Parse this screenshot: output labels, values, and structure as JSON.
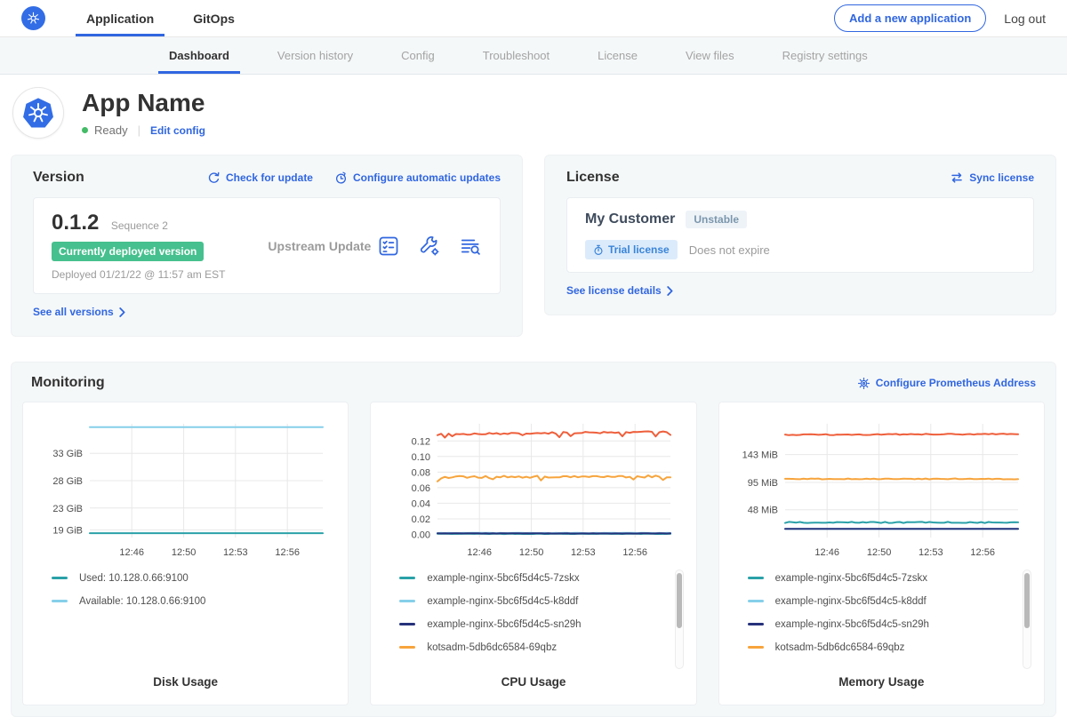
{
  "topnav": {
    "tabs": [
      {
        "label": "Application",
        "active": true
      },
      {
        "label": "GitOps",
        "active": false
      }
    ],
    "add_button": "Add a new application",
    "logout": "Log out"
  },
  "subnav": {
    "tabs": [
      {
        "label": "Dashboard",
        "active": true
      },
      {
        "label": "Version history",
        "active": false
      },
      {
        "label": "Config",
        "active": false
      },
      {
        "label": "Troubleshoot",
        "active": false
      },
      {
        "label": "License",
        "active": false
      },
      {
        "label": "View files",
        "active": false
      },
      {
        "label": "Registry settings",
        "active": false
      }
    ]
  },
  "app_header": {
    "title": "App Name",
    "status": "Ready",
    "edit_link": "Edit config"
  },
  "version_card": {
    "title": "Version",
    "check_update": "Check for update",
    "configure_updates": "Configure automatic updates",
    "version": "0.1.2",
    "sequence": "Sequence 2",
    "deployed_badge": "Currently deployed version",
    "deployed_at": "Deployed 01/21/22 @ 11:57 am EST",
    "source": "Upstream Update",
    "action_icons": [
      "preflight-checks-icon",
      "wrench-gear-icon",
      "deploy-logs-icon"
    ],
    "see_all": "See all versions"
  },
  "license_card": {
    "title": "License",
    "sync": "Sync license",
    "customer": "My Customer",
    "channel": "Unstable",
    "type_badge": "Trial license",
    "expiry": "Does not expire",
    "details": "See license details"
  },
  "monitoring": {
    "title": "Monitoring",
    "configure": "Configure Prometheus Address"
  },
  "colors": {
    "accent_blue": "#3066e0",
    "kubernetes_blue": "#326de6",
    "badge_green": "#46c08e",
    "status_green": "#44bb66",
    "teal_series": "#2aa1a8",
    "light_blue_series": "#85cfe9",
    "navy_series": "#26327b",
    "orange_series": "#f7a43c",
    "red_orange_series": "#ee5f3b",
    "panel_bg": "#f5f8f9"
  },
  "chart_data": [
    {
      "type": "line",
      "title": "Disk Usage",
      "x_ticks": [
        "12:46",
        "12:50",
        "12:53",
        "12:56"
      ],
      "y_ticks": [
        {
          "label": "33 GiB",
          "value": 33
        },
        {
          "label": "28 GiB",
          "value": 28
        },
        {
          "label": "23 GiB",
          "value": 23
        },
        {
          "label": "19 GiB",
          "value": 19
        }
      ],
      "ylim": [
        17.6,
        38.4
      ],
      "legend_scrollbar": false,
      "series": [
        {
          "name": "Used: 10.128.0.66:9100",
          "color": "#2aa1a8",
          "base": 18.4,
          "noise": 0,
          "shape": "flat"
        },
        {
          "name": "Available: 10.128.0.66:9100",
          "color": "#85cfe9",
          "base": 37.8,
          "noise": 0,
          "shape": "flat"
        }
      ]
    },
    {
      "type": "line",
      "title": "CPU Usage",
      "x_ticks": [
        "12:46",
        "12:50",
        "12:53",
        "12:56"
      ],
      "y_ticks": [
        {
          "label": "0.12",
          "value": 0.12
        },
        {
          "label": "0.10",
          "value": 0.1
        },
        {
          "label": "0.08",
          "value": 0.08
        },
        {
          "label": "0.06",
          "value": 0.06
        },
        {
          "label": "0.04",
          "value": 0.04
        },
        {
          "label": "0.02",
          "value": 0.02
        },
        {
          "label": "0.00",
          "value": 0
        }
      ],
      "ylim": [
        -0.004,
        0.142
      ],
      "legend_scrollbar": true,
      "series": [
        {
          "name": "example-nginx-5bc6f5d4c5-7zskx",
          "color": "#2aa1a8",
          "base": 0.0008,
          "noise": 0.0003
        },
        {
          "name": "example-nginx-5bc6f5d4c5-k8ddf",
          "color": "#85cfe9",
          "base": 0.0018,
          "noise": 0.0003
        },
        {
          "name": "example-nginx-5bc6f5d4c5-sn29h",
          "color": "#26327b",
          "base": 0.0013,
          "noise": 0.0002
        },
        {
          "name": "kotsadm-5db6dc6584-69qbz",
          "color": "#f7a43c",
          "base": 0.0735,
          "noise": 0.0015,
          "dip": 0.005,
          "trend": 0.001
        },
        {
          "name": "",
          "color": "#ee5f3b",
          "base": 0.1285,
          "noise": 0.0012,
          "dip": 0.0065,
          "trend": 0.0035,
          "in_legend": false
        }
      ]
    },
    {
      "type": "line",
      "title": "Memory Usage",
      "x_ticks": [
        "12:46",
        "12:50",
        "12:53",
        "12:56"
      ],
      "y_ticks": [
        {
          "label": "143 MiB",
          "value": 143
        },
        {
          "label": "95 MiB",
          "value": 95
        },
        {
          "label": "48 MiB",
          "value": 48
        }
      ],
      "ylim": [
        0,
        196
      ],
      "legend_scrollbar": true,
      "series": [
        {
          "name": "example-nginx-5bc6f5d4c5-7zskx",
          "color": "#2aa1a8",
          "base": 26,
          "noise": 1.0
        },
        {
          "name": "example-nginx-5bc6f5d4c5-k8ddf",
          "color": "#85cfe9",
          "base": 15,
          "noise": 0
        },
        {
          "name": "example-nginx-5bc6f5d4c5-sn29h",
          "color": "#26327b",
          "base": 15,
          "noise": 0
        },
        {
          "name": "kotsadm-5db6dc6584-69qbz",
          "color": "#f7a43c",
          "base": 101,
          "noise": 0.8
        },
        {
          "name": "",
          "color": "#ee5f3b",
          "base": 177,
          "noise": 0.9,
          "trend": 1.5,
          "in_legend": false
        }
      ]
    }
  ]
}
